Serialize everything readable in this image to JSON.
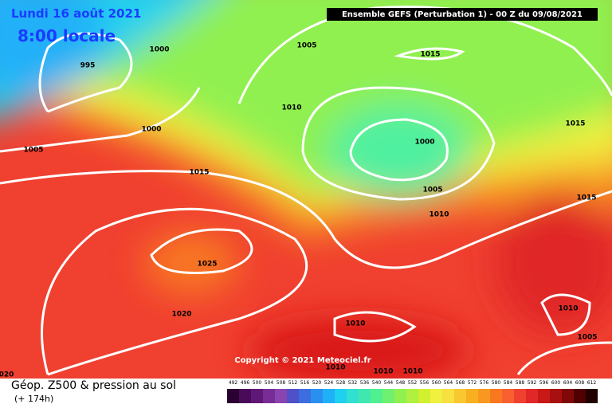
{
  "header": {
    "date": "Lundi 16 août 2021",
    "time": "8:00 locale",
    "run": "Ensemble GEFS  (Perturbation 1)  -  00 Z du 09/08/2021"
  },
  "isobar_labels": [
    "995",
    "1000",
    "1005",
    "1015",
    "1010",
    "1000",
    "1005",
    "1015",
    "1000",
    "1005",
    "1010",
    "1015",
    "1015",
    "1025",
    "1020",
    "1010",
    "1010",
    "1005",
    "1010",
    "1010",
    "1010",
    "020"
  ],
  "copyright": "Copyright © 2021 Meteociel.fr",
  "legend": {
    "title": "Géop. Z500 & pression au sol",
    "lead": "(+ 174h)",
    "scale": {
      "values": [
        492,
        496,
        500,
        504,
        508,
        512,
        516,
        520,
        524,
        528,
        532,
        536,
        540,
        544,
        548,
        552,
        556,
        560,
        564,
        568,
        572,
        576,
        580,
        584,
        588,
        592,
        596,
        600,
        604,
        608,
        612
      ],
      "colors": [
        "#2a0030",
        "#4a0a5a",
        "#601878",
        "#7a2c96",
        "#8a44b0",
        "#5050c8",
        "#3c6ee0",
        "#2a90f0",
        "#20b0f8",
        "#20d0f0",
        "#30e0d0",
        "#40e8b0",
        "#50f090",
        "#70f070",
        "#90f050",
        "#b0f040",
        "#d0f030",
        "#f0f040",
        "#f8e040",
        "#f8c830",
        "#f8b020",
        "#f89820",
        "#f87820",
        "#f86030",
        "#f04030",
        "#e02828",
        "#c81818",
        "#a81010",
        "#800808",
        "#500000",
        "#200000"
      ]
    }
  }
}
